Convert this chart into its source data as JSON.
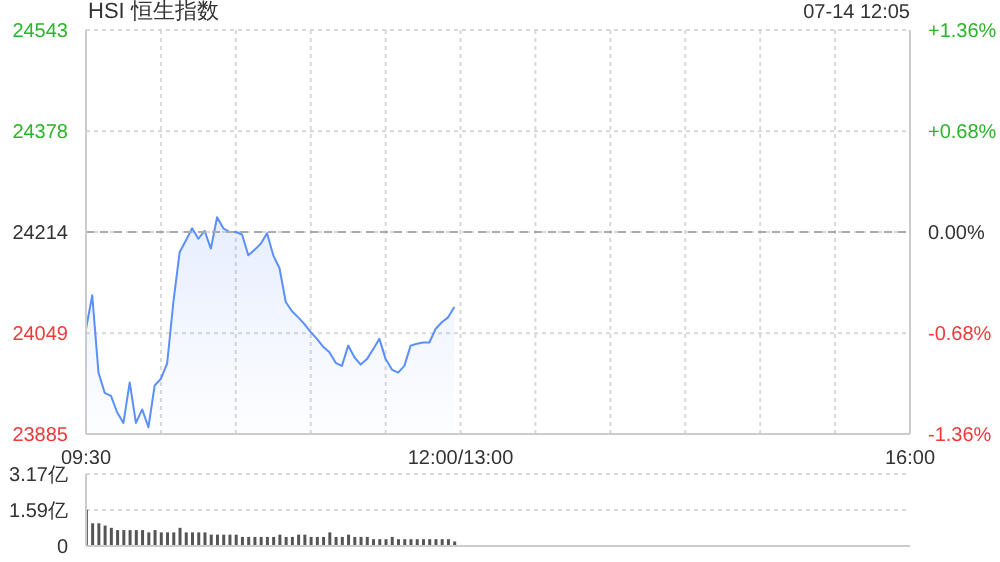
{
  "chart_data": [
    {
      "type": "area",
      "title": "HSI 恒生指数",
      "annotations": [
        "07-14 12:05"
      ],
      "color": "#5b8ff9",
      "categories": [
        "09:30",
        null,
        null,
        null,
        null,
        null,
        null,
        null,
        null,
        null,
        null,
        null,
        null,
        null,
        null,
        null,
        null,
        null,
        null,
        null,
        null,
        null,
        null,
        null,
        null,
        null,
        null,
        null,
        null,
        null,
        null,
        null,
        null,
        null,
        null,
        null,
        null,
        null,
        null,
        null,
        null,
        null,
        null,
        null,
        null,
        null,
        null,
        null,
        null,
        null,
        null,
        null,
        null,
        null,
        null,
        null,
        null,
        null,
        null,
        null,
        "12:00/13:00",
        null,
        null,
        null,
        null,
        null,
        null,
        null,
        null,
        null,
        null,
        null,
        null,
        null,
        null,
        null,
        null,
        null,
        null,
        null,
        null,
        null,
        null,
        null,
        null,
        null,
        null,
        null,
        null,
        null,
        null,
        null,
        null,
        null,
        null,
        null,
        null,
        null,
        null,
        null,
        null,
        null,
        null,
        null,
        null,
        null,
        null,
        null,
        null,
        null,
        null,
        null,
        null,
        null,
        null,
        null,
        null,
        null,
        null,
        null,
        null,
        null,
        null,
        null,
        null,
        null,
        null,
        null,
        null,
        null,
        null,
        null,
        "16:00"
      ],
      "values": [
        24056,
        24111,
        23985,
        23952,
        23947,
        23920,
        23903,
        23969,
        23903,
        23925,
        23896,
        23964,
        23975,
        24000,
        24100,
        24181,
        24200,
        24220,
        24203,
        24216,
        24187,
        24238,
        24220,
        24214,
        24214,
        24210,
        24176,
        24185,
        24195,
        24212,
        24176,
        24155,
        24100,
        24085,
        24075,
        24064,
        24051,
        24040,
        24027,
        24018,
        24001,
        23996,
        24029,
        24010,
        23998,
        24007,
        24023,
        24040,
        24007,
        23990,
        23985,
        23996,
        24029,
        24032,
        24034,
        24034,
        24056,
        24067,
        24075,
        24092,
        null,
        null,
        null,
        null,
        null,
        null,
        null,
        null,
        null,
        null,
        null,
        null,
        null,
        null,
        null,
        null,
        null,
        null,
        null,
        null,
        null,
        null,
        null,
        null,
        null,
        null,
        null,
        null,
        null,
        null,
        null,
        null,
        null,
        null,
        null,
        null,
        null,
        null,
        null,
        null,
        null,
        null,
        null,
        null,
        null,
        null,
        null,
        null,
        null,
        null,
        null,
        null,
        null,
        null,
        null,
        null,
        null,
        null,
        null,
        null,
        null,
        null,
        null,
        null,
        null,
        null,
        null,
        null,
        null,
        null,
        null,
        null,
        null
      ],
      "ylim": [
        23885,
        24543
      ],
      "yticks": [
        23885,
        24049,
        24214,
        24378,
        24543
      ],
      "y2lim": [
        -1.36,
        1.36
      ],
      "y2ticks": [
        {
          "value": -1.36,
          "label": "-1.36%"
        },
        {
          "value": -0.68,
          "label": "-0.68%"
        },
        {
          "value": 0,
          "label": "0.00%"
        },
        {
          "value": 0.68,
          "label": "+0.68%"
        },
        {
          "value": 1.36,
          "label": "+1.36%"
        }
      ],
      "ref_lines": [
        {
          "axis": "y",
          "value": 24214,
          "line_style": "dashed"
        }
      ],
      "grid": true
    },
    {
      "type": "bar",
      "color": "#555555",
      "categories": [
        null,
        null,
        null,
        null,
        null,
        null,
        null,
        null,
        null,
        null,
        null,
        null,
        null,
        null,
        null,
        null,
        null,
        null,
        null,
        null,
        null,
        null,
        null,
        null,
        null,
        null,
        null,
        null,
        null,
        null,
        null,
        null,
        null,
        null,
        null,
        null,
        null,
        null,
        null,
        null,
        null,
        null,
        null,
        null,
        null,
        null,
        null,
        null,
        null,
        null,
        null,
        null,
        null,
        null,
        null,
        null,
        null,
        null,
        null,
        null,
        null,
        null,
        null,
        null,
        null,
        null,
        null,
        null,
        null,
        null,
        null,
        null,
        null,
        null,
        null,
        null,
        null,
        null,
        null,
        null,
        null,
        null,
        null,
        null,
        null,
        null,
        null,
        null,
        null,
        null,
        null,
        null,
        null,
        null,
        null,
        null,
        null,
        null,
        null,
        null,
        null,
        null,
        null,
        null,
        null,
        null,
        null,
        null,
        null,
        null,
        null,
        null,
        null,
        null,
        null,
        null,
        null,
        null,
        null,
        null,
        null,
        null,
        null,
        null,
        null,
        null,
        null,
        null,
        null,
        null,
        null,
        null,
        null
      ],
      "values": [
        1.6,
        1.0,
        1.0,
        0.9,
        0.8,
        0.7,
        0.7,
        0.7,
        0.7,
        0.7,
        0.6,
        0.7,
        0.6,
        0.6,
        0.6,
        0.8,
        0.6,
        0.6,
        0.6,
        0.6,
        0.5,
        0.5,
        0.5,
        0.5,
        0.5,
        0.4,
        0.4,
        0.4,
        0.4,
        0.4,
        0.4,
        0.5,
        0.4,
        0.4,
        0.5,
        0.5,
        0.4,
        0.4,
        0.4,
        0.6,
        0.4,
        0.4,
        0.5,
        0.4,
        0.4,
        0.4,
        0.3,
        0.3,
        0.3,
        0.4,
        0.3,
        0.3,
        0.3,
        0.3,
        0.3,
        0.3,
        0.3,
        0.3,
        0.3,
        0.2,
        null,
        null,
        null,
        null,
        null,
        null,
        null,
        null,
        null,
        null,
        null,
        null,
        null,
        null,
        null,
        null,
        null,
        null,
        null,
        null,
        null,
        null,
        null,
        null,
        null,
        null,
        null,
        null,
        null,
        null,
        null,
        null,
        null,
        null,
        null,
        null,
        null,
        null,
        null,
        null,
        null,
        null,
        null,
        null,
        null,
        null,
        null,
        null,
        null,
        null,
        null,
        null,
        null,
        null,
        null,
        null,
        null,
        null,
        null,
        null,
        null,
        null,
        null,
        null,
        null,
        null,
        null,
        null,
        null,
        null,
        null,
        null,
        null
      ],
      "ylim": [
        0,
        3.17
      ],
      "yticks": [
        0,
        {
          "value": 1.59,
          "label": "1.59亿"
        },
        {
          "value": 3.17,
          "label": "3.17亿"
        }
      ],
      "tick_labels": "y",
      "grid": "y"
    }
  ]
}
